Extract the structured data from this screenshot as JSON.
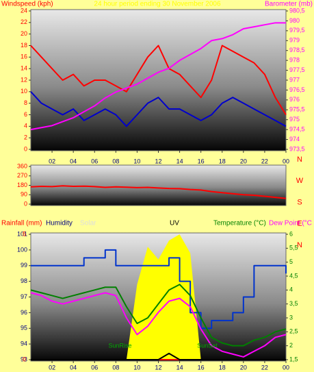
{
  "chart_data": [
    {
      "type": "line",
      "title": "24 hour period ending 30 November 2006",
      "y_label": "Windspeed (kph)",
      "y2_label": "Barometer (mb)",
      "y_label_color": "#ff0000",
      "y2_label_color": "#ff00ff",
      "title_color": "#ffff00",
      "ytick_color": "#ff0000",
      "y2tick_color": "#ff00ff",
      "x": [
        0,
        1,
        2,
        3,
        4,
        5,
        6,
        7,
        8,
        9,
        10,
        11,
        12,
        13,
        14,
        15,
        16,
        17,
        18,
        19,
        20,
        21,
        22,
        23,
        24
      ],
      "xlim": [
        0,
        24
      ],
      "xticks": [
        {
          "value": 2,
          "label": "02"
        },
        {
          "value": 4,
          "label": "04"
        },
        {
          "value": 6,
          "label": "06"
        },
        {
          "value": 8,
          "label": "08"
        },
        10,
        12,
        14,
        16,
        18,
        20,
        22,
        {
          "value": 24,
          "label": "00"
        }
      ],
      "ylim": [
        0,
        24
      ],
      "yticks": [
        0,
        2,
        4,
        6,
        8,
        10,
        12,
        14,
        16,
        18,
        20,
        22,
        24
      ],
      "y2lim": [
        973.5,
        980.5
      ],
      "y2ticks": [
        {
          "value": 973.5,
          "label": "973,5"
        },
        974,
        {
          "value": 974.5,
          "label": "974,5"
        },
        975,
        {
          "value": 975.5,
          "label": "975,5"
        },
        976,
        {
          "value": 976.5,
          "label": "976,5"
        },
        977,
        {
          "value": 977.5,
          "label": "977,5"
        },
        978,
        {
          "value": 978.5,
          "label": "978,5"
        },
        979,
        {
          "value": 979.5,
          "label": "979,5"
        },
        980,
        {
          "value": 980.5,
          "label": "980,5"
        }
      ],
      "series": [
        {
          "color": "#ff0000",
          "axis": "y",
          "values": [
            18,
            16,
            14,
            12,
            13,
            11,
            12,
            12,
            11,
            10,
            13,
            16,
            18,
            14,
            13,
            11,
            9,
            12,
            18,
            17,
            16,
            15,
            13,
            9,
            6
          ]
        },
        {
          "color": "#0000cc",
          "axis": "y",
          "values": [
            10,
            8,
            7,
            6,
            7,
            5,
            6,
            7,
            6,
            4,
            6,
            8,
            9,
            7,
            7,
            6,
            5,
            6,
            8,
            9,
            8,
            7,
            6,
            5,
            4
          ]
        },
        {
          "color": "#ff00ff",
          "axis": "y2",
          "values": [
            974.5,
            974.6,
            974.7,
            974.9,
            975.1,
            975.4,
            975.7,
            976.1,
            976.4,
            976.6,
            976.8,
            977.1,
            977.4,
            977.6,
            978.0,
            978.3,
            978.6,
            979.0,
            979.1,
            979.3,
            979.6,
            979.7,
            979.8,
            979.9,
            979.9
          ]
        }
      ]
    },
    {
      "type": "line",
      "ytick_color": "#ff0000",
      "x": [
        0,
        1,
        2,
        3,
        4,
        5,
        6,
        7,
        8,
        9,
        10,
        11,
        12,
        13,
        14,
        15,
        16,
        17,
        18,
        19,
        20,
        21,
        22,
        23,
        24
      ],
      "xlim": [
        0,
        24
      ],
      "ylim": [
        0,
        360
      ],
      "yticks": [
        0,
        90,
        180,
        270,
        360
      ],
      "compass": [
        "N",
        "W",
        "S",
        "E",
        "N"
      ],
      "compass_color": "#ff0000",
      "series": [
        {
          "color": "#ff0000",
          "axis": "y",
          "values": [
            165,
            170,
            168,
            175,
            170,
            172,
            168,
            160,
            165,
            162,
            158,
            160,
            155,
            150,
            148,
            140,
            135,
            120,
            110,
            100,
            90,
            85,
            75,
            65,
            55
          ]
        }
      ]
    },
    {
      "type": "line",
      "ytick_color": "#000080",
      "y2tick_color": "#008000",
      "x": [
        0,
        1,
        2,
        3,
        4,
        5,
        6,
        7,
        8,
        9,
        10,
        11,
        12,
        13,
        14,
        15,
        16,
        17,
        18,
        19,
        20,
        21,
        22,
        23,
        24
      ],
      "xlim": [
        0,
        24
      ],
      "xticks": [
        {
          "value": 2,
          "label": "02"
        },
        {
          "value": 4,
          "label": "04"
        },
        {
          "value": 6,
          "label": "06"
        },
        {
          "value": 8,
          "label": "08"
        },
        10,
        12,
        14,
        16,
        18,
        20,
        22,
        {
          "value": 24,
          "label": "00"
        }
      ],
      "ylim": [
        93,
        101
      ],
      "yticks": [
        93,
        94,
        95,
        96,
        97,
        98,
        99,
        100,
        101
      ],
      "y2lim": [
        1.5,
        6
      ],
      "y2ticks": [
        {
          "value": 1.5,
          "label": "1,5"
        },
        2,
        {
          "value": 2.5,
          "label": "2,5"
        },
        3,
        {
          "value": 3.5,
          "label": "3,5"
        },
        4,
        {
          "value": 4.5,
          "label": "4,5"
        },
        5,
        {
          "value": 5.5,
          "label": "5,5"
        },
        6
      ],
      "annotations": [
        {
          "text": "SunRise",
          "x": 8.4
        },
        {
          "text": "SunSet",
          "x": 16.6
        }
      ],
      "annotation_color": "#00aa00",
      "series": [
        {
          "name": "Solar",
          "color": "#ffff00",
          "label_color": "#dddddd",
          "kind": "area",
          "ylim": [
            0,
            100
          ],
          "values": [
            0,
            0,
            0,
            0,
            0,
            0,
            0,
            0,
            0,
            0,
            60,
            90,
            80,
            95,
            100,
            85,
            0,
            0,
            0,
            0,
            0,
            0,
            0,
            0,
            0
          ]
        },
        {
          "name": "Rainfall (mm)",
          "color": "#ff0000",
          "ylim": [
            0,
            5
          ],
          "yticks": [
            0,
            5
          ],
          "values": [
            0,
            0,
            0,
            0,
            0,
            0,
            0,
            0,
            0,
            0,
            0,
            0,
            0,
            0,
            0,
            0,
            0,
            0,
            0,
            0,
            0,
            0,
            0,
            0,
            0
          ]
        },
        {
          "name": "Humidity",
          "color": "#0033cc",
          "label_color": "#000080",
          "axis": "y",
          "step": true,
          "values": [
            99,
            99,
            99,
            99,
            99,
            99.5,
            99.5,
            100,
            99,
            99,
            99,
            99,
            99,
            99.5,
            98,
            96,
            95,
            95.5,
            95.5,
            96,
            97,
            99,
            99,
            99,
            98.5
          ]
        },
        {
          "name": "UV",
          "color": "#000000",
          "ylim": [
            0,
            10
          ],
          "values": [
            0,
            0,
            0,
            0,
            0,
            0,
            0,
            0,
            0,
            0,
            0,
            0,
            0,
            0.5,
            0,
            0,
            0,
            0,
            0,
            0,
            0,
            0,
            0,
            0,
            0
          ]
        },
        {
          "name": "Temperature (°C)",
          "color": "#008000",
          "axis": "y2",
          "values": [
            4.0,
            3.9,
            3.8,
            3.7,
            3.8,
            3.9,
            4.0,
            4.1,
            4.1,
            3.4,
            2.8,
            3.0,
            3.5,
            4.0,
            4.2,
            3.8,
            3.0,
            2.3,
            2.1,
            2.0,
            2.0,
            2.2,
            2.3,
            2.5,
            2.6
          ]
        },
        {
          "name": "Dew Point (°C",
          "color": "#ff00ff",
          "axis": "y2",
          "values": [
            3.9,
            3.8,
            3.6,
            3.5,
            3.6,
            3.7,
            3.8,
            3.9,
            3.8,
            3.0,
            2.4,
            2.7,
            3.2,
            3.6,
            3.7,
            3.4,
            2.6,
            2.0,
            1.8,
            1.7,
            1.6,
            1.8,
            2.0,
            2.3,
            2.4
          ]
        }
      ]
    }
  ]
}
